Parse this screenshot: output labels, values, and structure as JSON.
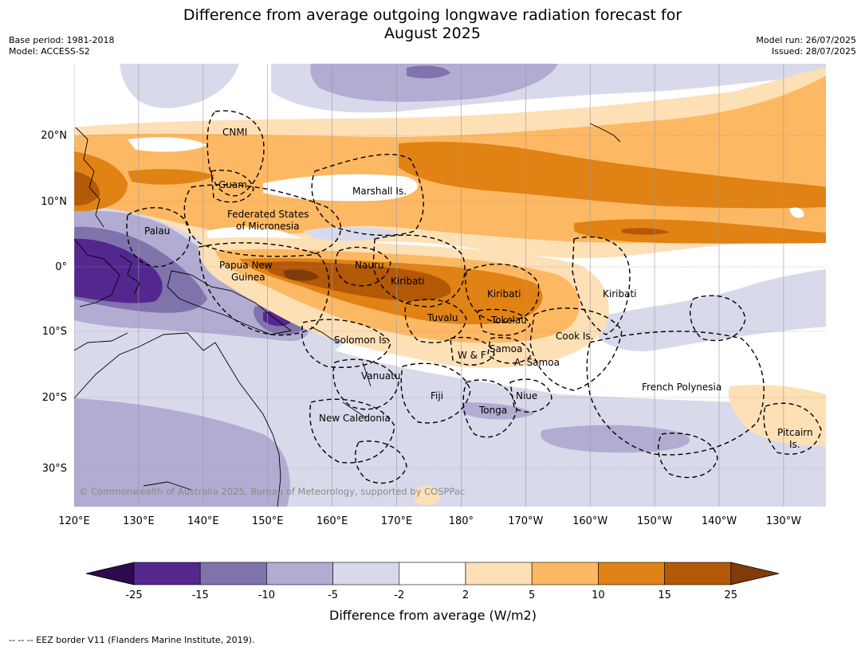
{
  "title": "Difference from average outgoing longwave radiation forecast for\nAugust 2025",
  "meta_left": [
    "Base period: 1981-2018",
    "Model: ACCESS-S2"
  ],
  "meta_right": [
    "Model run: 26/07/2025",
    "Issued: 28/07/2025"
  ],
  "copyright": "© Commonwealth of Australia 2025, Bureau of Meteorology, supported by COSPPac",
  "lon_ticks": [
    "120°E",
    "130°E",
    "140°E",
    "150°E",
    "160°E",
    "170°E",
    "180°",
    "170°W",
    "160°W",
    "150°W",
    "140°W",
    "130°W"
  ],
  "lat_ticks": [
    "20°N",
    "10°N",
    "0°",
    "10°S",
    "20°S",
    "30°S"
  ],
  "region_labels": [
    {
      "id": "cnmi",
      "text": "CNMI"
    },
    {
      "id": "guam",
      "text": "Guam"
    },
    {
      "id": "marshall",
      "text": "Marshall Is."
    },
    {
      "id": "fsm1",
      "text": "Federated States"
    },
    {
      "id": "fsm2",
      "text": "of Micronesia"
    },
    {
      "id": "palau",
      "text": "Palau"
    },
    {
      "id": "png1",
      "text": "Papua New"
    },
    {
      "id": "png2",
      "text": "Guinea"
    },
    {
      "id": "nauru",
      "text": "Nauru"
    },
    {
      "id": "kiribati-w",
      "text": "Kiribati"
    },
    {
      "id": "kiribati-c",
      "text": "Kiribati"
    },
    {
      "id": "kiribati-e",
      "text": "Kiribati"
    },
    {
      "id": "tuvalu",
      "text": "Tuvalu"
    },
    {
      "id": "tokelau",
      "text": "Tokelau"
    },
    {
      "id": "cook",
      "text": "Cook Is."
    },
    {
      "id": "solomon",
      "text": "Solomon Is."
    },
    {
      "id": "samoa",
      "text": "Samoa"
    },
    {
      "id": "wf",
      "text": "W & F"
    },
    {
      "id": "asamoa",
      "text": "A. Samoa"
    },
    {
      "id": "vanuatu",
      "text": "Vanuatu"
    },
    {
      "id": "fiji",
      "text": "Fiji"
    },
    {
      "id": "niue",
      "text": "Niue"
    },
    {
      "id": "tonga",
      "text": "Tonga"
    },
    {
      "id": "frpoly",
      "text": "French Polynesia"
    },
    {
      "id": "newcal",
      "text": "New Caledonia"
    },
    {
      "id": "pitcairn1",
      "text": "Pitcairn"
    },
    {
      "id": "pitcairn2",
      "text": "Is."
    }
  ],
  "colorbar": {
    "ticks": [
      "-25",
      "-15",
      "-10",
      "-5",
      "-2",
      "2",
      "5",
      "10",
      "15",
      "25"
    ],
    "colors": {
      "lt_m25": "#2d0a4e",
      "m25_m15": "#54278f",
      "m15_m10": "#8073ac",
      "m10_m5": "#b2abd2",
      "m5_m2": "#d8daeb",
      "m2_2": "#ffffff",
      "p2_5": "#fee0b6",
      "p5_10": "#fdb863",
      "p10_15": "#e08214",
      "p15_25": "#b35806",
      "gt_25": "#7f3b08"
    },
    "label": "Difference from average (W/m2)"
  },
  "eez_note": "--  --  -- EEZ border V11 (Flanders Marine Institute, 2019)."
}
